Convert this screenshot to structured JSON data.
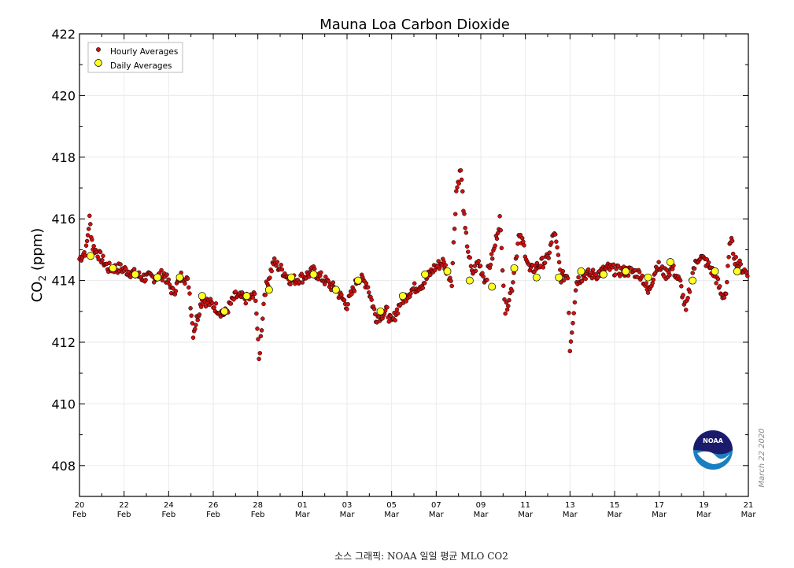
{
  "chart_data": {
    "type": "scatter",
    "title": "Mauna Loa Carbon Dioxide",
    "ylabel_main": "CO",
    "ylabel_sub": "2",
    "ylabel_unit": " (ppm)",
    "xlabel": "",
    "ylim": [
      407,
      422
    ],
    "xlim": [
      0,
      30
    ],
    "yticks": [
      408,
      410,
      412,
      414,
      416,
      418,
      420,
      422
    ],
    "xticks": [
      {
        "day": 0,
        "top": "20",
        "bottom": "Feb"
      },
      {
        "day": 2,
        "top": "22",
        "bottom": "Feb"
      },
      {
        "day": 4,
        "top": "24",
        "bottom": "Feb"
      },
      {
        "day": 6,
        "top": "26",
        "bottom": "Feb"
      },
      {
        "day": 8,
        "top": "28",
        "bottom": "Feb"
      },
      {
        "day": 10,
        "top": "01",
        "bottom": "Mar"
      },
      {
        "day": 12,
        "top": "03",
        "bottom": "Mar"
      },
      {
        "day": 14,
        "top": "05",
        "bottom": "Mar"
      },
      {
        "day": 16,
        "top": "07",
        "bottom": "Mar"
      },
      {
        "day": 18,
        "top": "09",
        "bottom": "Mar"
      },
      {
        "day": 20,
        "top": "11",
        "bottom": "Mar"
      },
      {
        "day": 22,
        "top": "13",
        "bottom": "Mar"
      },
      {
        "day": 24,
        "top": "15",
        "bottom": "Mar"
      },
      {
        "day": 26,
        "top": "17",
        "bottom": "Mar"
      },
      {
        "day": 28,
        "top": "19",
        "bottom": "Mar"
      },
      {
        "day": 30,
        "top": "21",
        "bottom": "Mar"
      }
    ],
    "legend": {
      "position": "top-left",
      "entries": [
        "Hourly Averages",
        "Daily Averages"
      ]
    },
    "series": [
      {
        "name": "Hourly Averages",
        "color": "#cc1111",
        "hourly_trace": [
          [
            0.0,
            414.7
          ],
          [
            0.3,
            415.0
          ],
          [
            0.45,
            416.0
          ],
          [
            0.6,
            415.1
          ],
          [
            0.9,
            414.8
          ],
          [
            1.3,
            414.4
          ],
          [
            1.8,
            414.4
          ],
          [
            2.2,
            414.3
          ],
          [
            2.8,
            414.1
          ],
          [
            3.3,
            414.1
          ],
          [
            3.8,
            414.2
          ],
          [
            4.2,
            413.6
          ],
          [
            4.6,
            414.2
          ],
          [
            4.9,
            413.9
          ],
          [
            5.1,
            412.3
          ],
          [
            5.5,
            413.4
          ],
          [
            6.0,
            413.2
          ],
          [
            6.5,
            412.9
          ],
          [
            7.0,
            413.5
          ],
          [
            7.5,
            413.4
          ],
          [
            7.9,
            413.5
          ],
          [
            8.05,
            411.4
          ],
          [
            8.3,
            413.6
          ],
          [
            8.7,
            414.6
          ],
          [
            9.0,
            414.4
          ],
          [
            9.5,
            414.0
          ],
          [
            10.0,
            414.1
          ],
          [
            10.5,
            414.3
          ],
          [
            11.0,
            414.0
          ],
          [
            11.5,
            413.7
          ],
          [
            12.0,
            413.2
          ],
          [
            12.5,
            414.1
          ],
          [
            12.9,
            413.9
          ],
          [
            13.3,
            412.8
          ],
          [
            13.8,
            413.0
          ],
          [
            14.0,
            412.6
          ],
          [
            14.4,
            413.3
          ],
          [
            14.9,
            413.7
          ],
          [
            15.4,
            413.9
          ],
          [
            15.9,
            414.4
          ],
          [
            16.3,
            414.6
          ],
          [
            16.7,
            414.0
          ],
          [
            16.9,
            416.9
          ],
          [
            17.1,
            417.6
          ],
          [
            17.3,
            415.6
          ],
          [
            17.6,
            414.2
          ],
          [
            17.9,
            414.6
          ],
          [
            18.2,
            414.0
          ],
          [
            18.6,
            415.0
          ],
          [
            18.85,
            416.0
          ],
          [
            19.1,
            413.0
          ],
          [
            19.4,
            413.8
          ],
          [
            19.7,
            415.4
          ],
          [
            19.9,
            415.2
          ],
          [
            20.2,
            414.3
          ],
          [
            20.6,
            414.5
          ],
          [
            21.0,
            414.7
          ],
          [
            21.3,
            415.6
          ],
          [
            21.6,
            414.1
          ],
          [
            21.9,
            414.2
          ],
          [
            22.0,
            411.8
          ],
          [
            22.3,
            414.0
          ],
          [
            22.7,
            414.2
          ],
          [
            23.2,
            414.2
          ],
          [
            23.7,
            414.4
          ],
          [
            24.2,
            414.3
          ],
          [
            24.7,
            414.3
          ],
          [
            25.2,
            414.2
          ],
          [
            25.5,
            413.6
          ],
          [
            25.9,
            414.5
          ],
          [
            26.3,
            414.2
          ],
          [
            26.6,
            414.4
          ],
          [
            26.95,
            413.9
          ],
          [
            27.2,
            413.0
          ],
          [
            27.5,
            414.3
          ],
          [
            27.8,
            414.8
          ],
          [
            28.1,
            414.6
          ],
          [
            28.3,
            414.4
          ],
          [
            28.6,
            414.0
          ],
          [
            28.8,
            413.5
          ],
          [
            29.0,
            413.6
          ],
          [
            29.2,
            415.4
          ],
          [
            29.4,
            414.7
          ],
          [
            29.7,
            414.4
          ],
          [
            30.0,
            414.2
          ]
        ]
      },
      {
        "name": "Daily Averages",
        "color": "#ffff22",
        "x": [
          0.5,
          1.5,
          2.5,
          3.5,
          4.5,
          5.5,
          6.5,
          7.5,
          8.5,
          9.5,
          10.5,
          11.5,
          12.5,
          13.5,
          14.5,
          15.5,
          16.5,
          17.5,
          18.5,
          19.5,
          20.5,
          21.5,
          22.5,
          23.5,
          24.5,
          25.5,
          26.5,
          27.5,
          28.5,
          29.5
        ],
        "values": [
          414.8,
          414.4,
          414.2,
          414.1,
          414.1,
          413.5,
          413.0,
          413.5,
          413.7,
          414.1,
          414.2,
          413.7,
          414.0,
          413.0,
          413.5,
          414.2,
          414.3,
          414.0,
          413.8,
          414.4,
          414.1,
          414.1,
          414.3,
          414.2,
          414.3,
          414.1,
          414.6,
          414.0,
          414.3,
          414.3
        ]
      }
    ]
  },
  "watermark_date": "March 22 2020",
  "logo_text": "NOAA",
  "caption": "소스 그래픽: NOAA 일일 평균 MLO CO2"
}
